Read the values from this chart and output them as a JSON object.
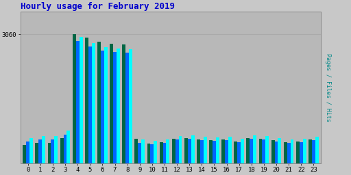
{
  "title": "Hourly usage for February 2019",
  "ylabel_right": "Pages / Files / Hits",
  "hours": [
    0,
    1,
    2,
    3,
    4,
    5,
    6,
    7,
    8,
    9,
    10,
    11,
    12,
    13,
    14,
    15,
    16,
    17,
    18,
    19,
    20,
    21,
    22,
    23
  ],
  "hits": [
    600,
    650,
    650,
    780,
    3000,
    2850,
    2760,
    2720,
    2700,
    560,
    530,
    560,
    640,
    660,
    620,
    610,
    620,
    580,
    660,
    640,
    600,
    560,
    580,
    630
  ],
  "files": [
    520,
    560,
    560,
    680,
    2900,
    2770,
    2670,
    2640,
    2620,
    480,
    450,
    480,
    560,
    580,
    540,
    530,
    540,
    500,
    580,
    560,
    520,
    480,
    500,
    550
  ],
  "pages": [
    440,
    480,
    480,
    600,
    3060,
    2980,
    2880,
    2840,
    2820,
    580,
    470,
    490,
    580,
    600,
    560,
    550,
    560,
    520,
    600,
    580,
    540,
    500,
    520,
    570
  ],
  "ytick_label": "3060",
  "ytick_value": 3060,
  "ylim_max": 3600,
  "background_color": "#c8c8c8",
  "plot_bg_color": "#b8b8b8",
  "bar_color_hits": "#00ffff",
  "bar_color_files": "#0066ff",
  "bar_color_pages": "#006644",
  "title_color": "#0000cc",
  "right_label_color_pages": "#008866",
  "right_label_color_files": "#0066ff",
  "right_label_color_hits": "#008888",
  "grid_color": "#aaaaaa",
  "bar_width": 0.27,
  "figwidth": 5.12,
  "figheight": 2.56,
  "dpi": 100
}
